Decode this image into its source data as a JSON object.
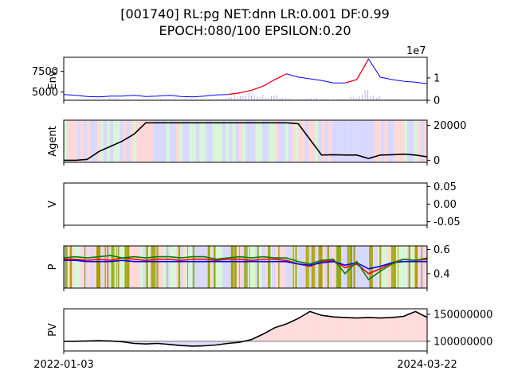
{
  "title_line1": "[001740] RL:pg NET:dnn LR:0.001 DF:0.99",
  "title_line2": "EPOCH:080/100 EPSILON:0.20",
  "chart_data": [
    {
      "type": "line",
      "ylabel": "Env.",
      "y_left_ticks": [
        "5000",
        "7500"
      ],
      "y_right_ticks": [
        "0",
        "1"
      ],
      "y_right_multiplier": "1e7",
      "series": [
        {
          "values": [
            4700,
            4600,
            4450,
            4400,
            4500,
            4500,
            4600,
            4450,
            4500,
            4600,
            4450,
            4400,
            4500,
            4650,
            4700,
            4900,
            5200,
            5700,
            6500,
            7200,
            6800,
            6600,
            6400,
            6100,
            6100,
            6500,
            9000,
            6800,
            6500,
            6300,
            6200,
            6000
          ]
        }
      ],
      "volume_values": [
        0.1,
        0.1,
        0.1,
        0.1,
        0.2,
        0.1,
        0.1,
        0.1,
        0.1,
        0.2,
        0.1,
        0.1,
        0.1,
        0.2,
        0.3,
        0.5,
        0.6,
        0.5,
        0.4,
        0.2,
        0.2,
        0.2,
        0.2,
        0.1,
        0.1,
        0.3,
        1.0,
        0.4,
        0.2,
        0.1,
        0.1,
        0.1
      ],
      "colors": {
        "line": "#0000ff",
        "up": "#ff0000",
        "volume": "#aaaaff"
      }
    },
    {
      "type": "line",
      "ylabel": "Agent",
      "y_right_ticks": [
        "0",
        "20000"
      ],
      "series": [
        {
          "values": [
            0,
            0,
            500,
            5000,
            8000,
            11000,
            15000,
            21500,
            21500,
            21500,
            21500,
            21500,
            21500,
            21500,
            21500,
            21500,
            21500,
            21500,
            21500,
            21500,
            21000,
            12000,
            3000,
            3200,
            3000,
            3000,
            1000,
            3000,
            3200,
            3500,
            3000,
            2000
          ]
        }
      ],
      "colors": {
        "line": "#000000"
      }
    },
    {
      "type": "line",
      "ylabel": "V",
      "y_right_ticks": [
        "-0.05",
        "0.00",
        "0.05"
      ],
      "series": []
    },
    {
      "type": "line",
      "ylabel": "P",
      "y_right_ticks": [
        "0.4",
        "0.6"
      ],
      "series": [
        {
          "values": [
            0.52,
            0.52,
            0.51,
            0.52,
            0.51,
            0.53,
            0.52,
            0.51,
            0.52,
            0.52,
            0.51,
            0.52,
            0.52,
            0.51,
            0.52,
            0.52,
            0.51,
            0.52,
            0.52,
            0.51,
            0.48,
            0.46,
            0.5,
            0.51,
            0.45,
            0.48,
            0.4,
            0.44,
            0.49,
            0.52,
            0.51,
            0.52
          ]
        },
        {
          "values": [
            0.51,
            0.51,
            0.5,
            0.5,
            0.5,
            0.51,
            0.5,
            0.5,
            0.5,
            0.5,
            0.5,
            0.5,
            0.5,
            0.5,
            0.5,
            0.5,
            0.5,
            0.5,
            0.5,
            0.5,
            0.48,
            0.47,
            0.49,
            0.5,
            0.47,
            0.49,
            0.44,
            0.46,
            0.49,
            0.5,
            0.5,
            0.5
          ]
        },
        {
          "values": [
            0.53,
            0.54,
            0.53,
            0.54,
            0.55,
            0.53,
            0.54,
            0.53,
            0.54,
            0.54,
            0.53,
            0.54,
            0.54,
            0.52,
            0.53,
            0.54,
            0.53,
            0.54,
            0.53,
            0.53,
            0.5,
            0.48,
            0.51,
            0.52,
            0.4,
            0.5,
            0.35,
            0.42,
            0.48,
            0.52,
            0.51,
            0.53
          ]
        }
      ],
      "colors": [
        "#ff0000",
        "#0000ff",
        "#008000"
      ]
    },
    {
      "type": "area",
      "ylabel": "PV",
      "y_right_ticks": [
        "100000000",
        "150000000"
      ],
      "baseline": 100000000,
      "series": [
        {
          "values": [
            100000000,
            100000000,
            100500000,
            101000000,
            100500000,
            99000000,
            96000000,
            95000000,
            96000000,
            94000000,
            92000000,
            91000000,
            91500000,
            93000000,
            96000000,
            98000000,
            103000000,
            113000000,
            125000000,
            132000000,
            142000000,
            155000000,
            148000000,
            145000000,
            144000000,
            143000000,
            144000000,
            143000000,
            144000000,
            146000000,
            155000000,
            144000000
          ]
        }
      ],
      "colors": {
        "line": "#000000",
        "above": "#ffdddd",
        "below": "#ddddff",
        "baseline": "#888888"
      }
    }
  ],
  "x_tick_labels": [
    "2022-01-03",
    "2024-03-22"
  ]
}
